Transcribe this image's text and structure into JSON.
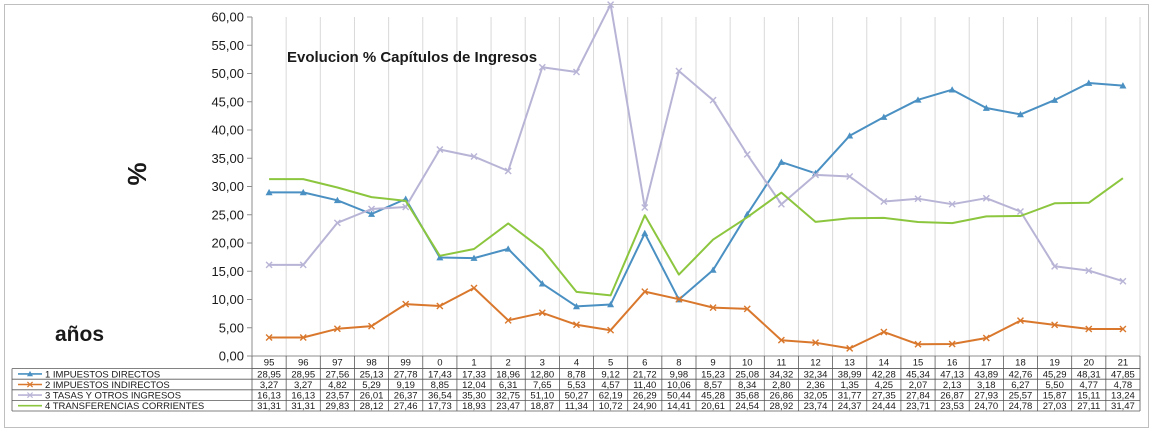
{
  "chart_data": {
    "type": "line",
    "title": "Evolucion % Capítulos de Ingresos",
    "ylabel": "%",
    "xlabel": "años",
    "ylim": [
      0,
      60
    ],
    "ytick_labels": [
      "0,00",
      "5,00",
      "10,00",
      "15,00",
      "20,00",
      "25,00",
      "30,00",
      "35,00",
      "40,00",
      "45,00",
      "50,00",
      "55,00",
      "60,00"
    ],
    "categories": [
      "95",
      "96",
      "97",
      "98",
      "99",
      "0",
      "1",
      "2",
      "3",
      "4",
      "5",
      "6",
      "8",
      "9",
      "10",
      "11",
      "12",
      "13",
      "14",
      "15",
      "16",
      "17",
      "18",
      "19",
      "20",
      "21"
    ],
    "grid": "vertical",
    "legend_placement": "data-table-left",
    "series": [
      {
        "name": "1 IMPUESTOS DIRECTOS",
        "color": "#4a90c2",
        "marker": "triangle",
        "values": [
          28.95,
          28.95,
          27.56,
          25.13,
          27.78,
          17.43,
          17.33,
          18.96,
          12.8,
          8.78,
          9.12,
          21.72,
          9.98,
          15.23,
          25.08,
          34.32,
          32.34,
          38.99,
          42.28,
          45.34,
          47.13,
          43.89,
          42.76,
          45.29,
          48.31,
          47.85
        ],
        "labels": [
          "28,95",
          "28,95",
          "27,56",
          "25,13",
          "27,78",
          "17,43",
          "17,33",
          "18,96",
          "12,80",
          "8,78",
          "9,12",
          "21,72",
          "9,98",
          "15,23",
          "25,08",
          "34,32",
          "32,34",
          "38,99",
          "42,28",
          "45,34",
          "47,13",
          "43,89",
          "42,76",
          "45,29",
          "48,31",
          "47,85"
        ]
      },
      {
        "name": "2 IMPUESTOS INDIRECTOS",
        "color": "#d9782d",
        "marker": "x",
        "values": [
          3.27,
          3.27,
          4.82,
          5.29,
          9.19,
          8.85,
          12.04,
          6.31,
          7.65,
          5.53,
          4.57,
          11.4,
          10.06,
          8.57,
          8.34,
          2.8,
          2.36,
          1.35,
          4.25,
          2.07,
          2.13,
          3.18,
          6.27,
          5.5,
          4.77,
          4.78
        ],
        "labels": [
          "3,27",
          "3,27",
          "4,82",
          "5,29",
          "9,19",
          "8,85",
          "12,04",
          "6,31",
          "7,65",
          "5,53",
          "4,57",
          "11,40",
          "10,06",
          "8,57",
          "8,34",
          "2,80",
          "2,36",
          "1,35",
          "4,25",
          "2,07",
          "2,13",
          "3,18",
          "6,27",
          "5,50",
          "4,77",
          "4,78"
        ]
      },
      {
        "name": "3 TASAS Y OTROS INGRESOS",
        "color": "#b8b4d6",
        "marker": "x",
        "values": [
          16.13,
          16.13,
          23.57,
          26.01,
          26.37,
          36.54,
          35.3,
          32.75,
          51.1,
          50.27,
          62.19,
          26.29,
          50.44,
          45.28,
          35.68,
          26.86,
          32.05,
          31.77,
          27.35,
          27.84,
          26.87,
          27.93,
          25.57,
          15.87,
          15.11,
          13.24
        ],
        "labels": [
          "16,13",
          "16,13",
          "23,57",
          "26,01",
          "26,37",
          "36,54",
          "35,30",
          "32,75",
          "51,10",
          "50,27",
          "62,19",
          "26,29",
          "50,44",
          "45,28",
          "35,68",
          "26,86",
          "32,05",
          "31,77",
          "27,35",
          "27,84",
          "26,87",
          "27,93",
          "25,57",
          "15,87",
          "15,11",
          "13,24"
        ]
      },
      {
        "name": "4 TRANSFERENCIAS CORRIENTES",
        "color": "#8cc63f",
        "marker": "none",
        "values": [
          31.31,
          31.31,
          29.83,
          28.12,
          27.46,
          17.73,
          18.93,
          23.47,
          18.87,
          11.34,
          10.72,
          24.9,
          14.41,
          20.61,
          24.54,
          28.92,
          23.74,
          24.37,
          24.44,
          23.71,
          23.53,
          24.7,
          24.78,
          27.03,
          27.11,
          31.47
        ],
        "labels": [
          "31,31",
          "31,31",
          "29,83",
          "28,12",
          "27,46",
          "17,73",
          "18,93",
          "23,47",
          "18,87",
          "11,34",
          "10,72",
          "24,90",
          "14,41",
          "20,61",
          "24,54",
          "28,92",
          "23,74",
          "24,37",
          "24,44",
          "23,71",
          "23,53",
          "24,70",
          "24,78",
          "27,03",
          "27,11",
          "31,47"
        ]
      }
    ]
  }
}
